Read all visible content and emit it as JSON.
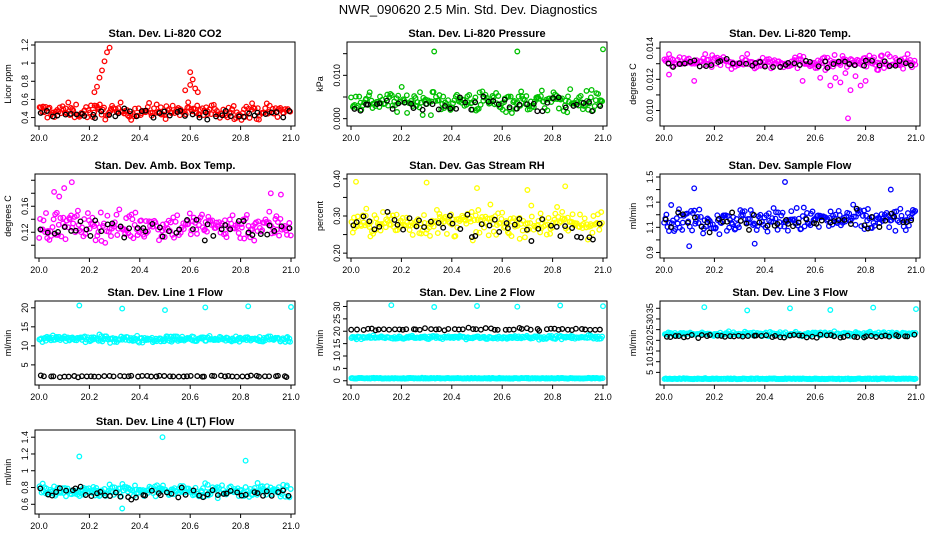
{
  "page_title": "NWR_090620  2.5 Min. Std. Dev. Diagnostics",
  "chart_data": [
    {
      "type": "scatter",
      "title": "Stan. Dev. Li-820 CO2",
      "ylabel": "Licor ppm",
      "xlim": [
        20.0,
        21.0
      ],
      "ylim": [
        0.34,
        1.2
      ],
      "xticks": [
        20.0,
        20.2,
        20.4,
        20.6,
        20.8,
        21.0
      ],
      "yticks": [
        0.4,
        0.6,
        0.8,
        1.0,
        1.2
      ],
      "series": [
        {
          "color": "#ff0000",
          "base": 0.47,
          "spread": 0.06,
          "n": 200,
          "extra": [
            [
              20.26,
              1.02
            ],
            [
              20.27,
              1.12
            ],
            [
              20.28,
              1.17
            ],
            [
              20.25,
              0.92
            ],
            [
              20.24,
              0.84
            ],
            [
              20.23,
              0.74
            ],
            [
              20.22,
              0.68
            ],
            [
              20.6,
              0.9
            ],
            [
              20.61,
              0.82
            ],
            [
              20.6,
              0.76
            ],
            [
              20.62,
              0.72
            ],
            [
              20.58,
              0.7
            ],
            [
              20.63,
              0.68
            ]
          ]
        },
        {
          "color": "#000000",
          "base": 0.44,
          "spread": 0.04,
          "n": 45
        }
      ],
      "grid": false,
      "legend": "none"
    },
    {
      "type": "scatter",
      "title": "Stan. Dev. Li-820 Pressure",
      "ylabel": "kPa",
      "xlim": [
        20.0,
        21.0
      ],
      "ylim": [
        -0.001,
        0.017
      ],
      "xticks": [
        20.0,
        20.2,
        20.4,
        20.6,
        20.8,
        21.0
      ],
      "yticks": [
        0.0,
        0.005,
        0.01,
        0.015
      ],
      "ytick_labels": [
        "0.000",
        "",
        "0.010",
        ""
      ],
      "series": [
        {
          "color": "#00c000",
          "base": 0.004,
          "spread": 0.0018,
          "n": 220,
          "extra": [
            [
              20.33,
              0.0155
            ],
            [
              20.66,
              0.0155
            ],
            [
              21.0,
              0.016
            ]
          ]
        },
        {
          "color": "#000000",
          "base": 0.003,
          "spread": 0.0013,
          "n": 45
        }
      ],
      "grid": false,
      "legend": "none"
    },
    {
      "type": "scatter",
      "title": "Stan. Dev. Li-820 Temp.",
      "ylabel": "degrees C",
      "xlim": [
        20.0,
        21.0
      ],
      "ylim": [
        0.0092,
        0.0142
      ],
      "xticks": [
        20.0,
        20.2,
        20.4,
        20.6,
        20.8,
        21.0
      ],
      "yticks": [
        0.01,
        0.011,
        0.012,
        0.013,
        0.014
      ],
      "ytick_labels": [
        "0.010",
        "",
        "0.012",
        "",
        "0.014"
      ],
      "series": [
        {
          "color": "#ff00ff",
          "base": 0.0131,
          "spread": 0.0003,
          "n": 210,
          "extra": [
            [
              20.02,
              0.0123
            ],
            [
              20.12,
              0.0119
            ],
            [
              20.36,
              0.0127
            ],
            [
              20.55,
              0.0119
            ],
            [
              20.62,
              0.0121
            ],
            [
              20.66,
              0.0116
            ],
            [
              20.68,
              0.0121
            ],
            [
              20.7,
              0.0118
            ],
            [
              20.72,
              0.0124
            ],
            [
              20.74,
              0.0113
            ],
            [
              20.76,
              0.0122
            ],
            [
              20.78,
              0.0116
            ],
            [
              20.8,
              0.0119
            ],
            [
              20.73,
              0.0095
            ],
            [
              20.64,
              0.0126
            ],
            [
              20.85,
              0.0126
            ]
          ]
        },
        {
          "color": "#000000",
          "base": 0.013,
          "spread": 0.0002,
          "n": 45
        }
      ],
      "grid": false,
      "legend": "none"
    },
    {
      "type": "scatter",
      "title": "Stan. Dev. Amb. Box Temp.",
      "ylabel": "degrees C",
      "xlim": [
        20.0,
        21.0
      ],
      "ylim": [
        0.085,
        0.205
      ],
      "xticks": [
        20.0,
        20.2,
        20.4,
        20.6,
        20.8,
        21.0
      ],
      "yticks": [
        0.1,
        0.12,
        0.14,
        0.16,
        0.18,
        0.2
      ],
      "ytick_labels": [
        "",
        "0.12",
        "",
        "0.16",
        "",
        ""
      ],
      "series": [
        {
          "color": "#ff00ff",
          "base": 0.13,
          "spread": 0.016,
          "n": 230,
          "extra": [
            [
              20.06,
              0.182
            ],
            [
              20.1,
              0.188
            ],
            [
              20.13,
              0.197
            ],
            [
              20.08,
              0.175
            ],
            [
              20.92,
              0.18
            ],
            [
              20.96,
              0.178
            ]
          ]
        },
        {
          "color": "#000000",
          "base": 0.125,
          "spread": 0.012,
          "n": 45
        }
      ],
      "grid": false,
      "legend": "none"
    },
    {
      "type": "scatter",
      "title": "Stan. Dev. Gas Stream RH",
      "ylabel": "percent",
      "xlim": [
        20.0,
        21.0
      ],
      "ylim": [
        0.195,
        0.405
      ],
      "xticks": [
        20.0,
        20.2,
        20.4,
        20.6,
        20.8,
        21.0
      ],
      "yticks": [
        0.2,
        0.25,
        0.3,
        0.35,
        0.4
      ],
      "ytick_labels": [
        "0.20",
        "",
        "0.30",
        "",
        "0.40"
      ],
      "series": [
        {
          "color": "#ffff00",
          "base": 0.28,
          "spread": 0.025,
          "n": 230,
          "extra": [
            [
              20.02,
              0.392
            ],
            [
              20.3,
              0.39
            ],
            [
              20.5,
              0.375
            ],
            [
              20.7,
              0.37
            ],
            [
              20.85,
              0.38
            ]
          ]
        },
        {
          "color": "#000000",
          "base": 0.275,
          "spread": 0.025,
          "n": 45
        }
      ],
      "grid": false,
      "legend": "none"
    },
    {
      "type": "scatter",
      "title": "Stan. Dev. Sample Flow",
      "ylabel": "ml/min",
      "xlim": [
        20.0,
        21.0
      ],
      "ylim": [
        0.88,
        1.5
      ],
      "xticks": [
        20.0,
        20.2,
        20.4,
        20.6,
        20.8,
        21.0
      ],
      "yticks": [
        0.9,
        1.0,
        1.1,
        1.2,
        1.3,
        1.4,
        1.5
      ],
      "ytick_labels": [
        "0.9",
        "",
        "1.1",
        "",
        "1.3",
        "",
        "1.5"
      ],
      "series": [
        {
          "color": "#0000ff",
          "base": 1.16,
          "spread": 0.07,
          "n": 230,
          "extra": [
            [
              20.12,
              1.41
            ],
            [
              20.48,
              1.46
            ],
            [
              20.9,
              1.4
            ],
            [
              20.1,
              0.95
            ],
            [
              20.36,
              0.97
            ]
          ]
        },
        {
          "color": "#000000",
          "base": 1.15,
          "spread": 0.05,
          "n": 45
        }
      ],
      "grid": false,
      "legend": "none"
    },
    {
      "type": "scatter",
      "title": "Stan. Dev. Line 1 Flow",
      "ylabel": "ml/min",
      "xlim": [
        20.0,
        21.0
      ],
      "ylim": [
        0.5,
        21.0
      ],
      "xticks": [
        20.0,
        20.2,
        20.4,
        20.6,
        20.8,
        21.0
      ],
      "yticks": [
        5,
        10,
        15,
        20
      ],
      "series": [
        {
          "color": "#00ffff",
          "base": 11.8,
          "spread": 0.6,
          "n": 240,
          "extra": [
            [
              20.16,
              20.6
            ],
            [
              20.33,
              19.8
            ],
            [
              20.5,
              19.4
            ],
            [
              20.66,
              20.1
            ],
            [
              20.83,
              20.4
            ],
            [
              21.0,
              20.2
            ]
          ]
        },
        {
          "color": "#000000",
          "base": 2.0,
          "spread": 0.15,
          "n": 55
        }
      ],
      "grid": false,
      "legend": "none"
    },
    {
      "type": "scatter",
      "title": "Stan. Dev. Line 2 Flow",
      "ylabel": "ml/min",
      "xlim": [
        20.0,
        21.0
      ],
      "ylim": [
        -0.5,
        31.0
      ],
      "xticks": [
        20.0,
        20.2,
        20.4,
        20.6,
        20.8,
        21.0
      ],
      "yticks": [
        0,
        5,
        10,
        15,
        20,
        25,
        30
      ],
      "series": [
        {
          "color": "#00ffff",
          "base": 17.5,
          "spread": 0.5,
          "n": 200,
          "extra": [
            [
              20.16,
              30.5
            ],
            [
              20.33,
              29.8
            ],
            [
              20.5,
              30.2
            ],
            [
              20.66,
              29.9
            ],
            [
              20.83,
              30.4
            ],
            [
              21.0,
              30.1
            ]
          ]
        },
        {
          "color": "#00ffff",
          "base": 1.0,
          "spread": 0.12,
          "n": 240
        },
        {
          "color": "#000000",
          "base": 20.8,
          "spread": 0.4,
          "n": 55
        }
      ],
      "grid": false,
      "legend": "none"
    },
    {
      "type": "scatter",
      "title": "Stan. Dev. Line 3 Flow",
      "ylabel": "ml/min",
      "xlim": [
        20.0,
        21.0
      ],
      "ylim": [
        0.5,
        37.0
      ],
      "xticks": [
        20.0,
        20.2,
        20.4,
        20.6,
        20.8,
        21.0
      ],
      "yticks": [
        5,
        10,
        15,
        20,
        25,
        30,
        35
      ],
      "series": [
        {
          "color": "#00ffff",
          "base": 23.0,
          "spread": 0.7,
          "n": 200,
          "extra": [
            [
              20.16,
              35.5
            ],
            [
              20.33,
              34.0
            ],
            [
              20.5,
              35.0
            ],
            [
              20.66,
              34.2
            ],
            [
              20.83,
              35.3
            ],
            [
              21.0,
              34.6
            ]
          ]
        },
        {
          "color": "#00ffff",
          "base": 2.0,
          "spread": 0.15,
          "n": 240
        },
        {
          "color": "#000000",
          "base": 22.0,
          "spread": 0.5,
          "n": 55
        }
      ],
      "grid": false,
      "legend": "none"
    },
    {
      "type": "scatter",
      "title": "Stan. Dev. Line 4 (LT) Flow",
      "ylabel": "ml/min",
      "xlim": [
        20.0,
        21.0
      ],
      "ylim": [
        0.52,
        1.45
      ],
      "xticks": [
        20.0,
        20.2,
        20.4,
        20.6,
        20.8,
        21.0
      ],
      "yticks": [
        0.6,
        0.8,
        1.0,
        1.2,
        1.4
      ],
      "series": [
        {
          "color": "#00ffff",
          "base": 0.76,
          "spread": 0.055,
          "n": 240,
          "extra": [
            [
              20.16,
              1.17
            ],
            [
              20.49,
              1.4
            ],
            [
              20.82,
              1.12
            ],
            [
              20.33,
              0.55
            ]
          ]
        },
        {
          "color": "#000000",
          "base": 0.73,
          "spread": 0.05,
          "n": 50
        }
      ],
      "grid": false,
      "legend": "none"
    }
  ]
}
